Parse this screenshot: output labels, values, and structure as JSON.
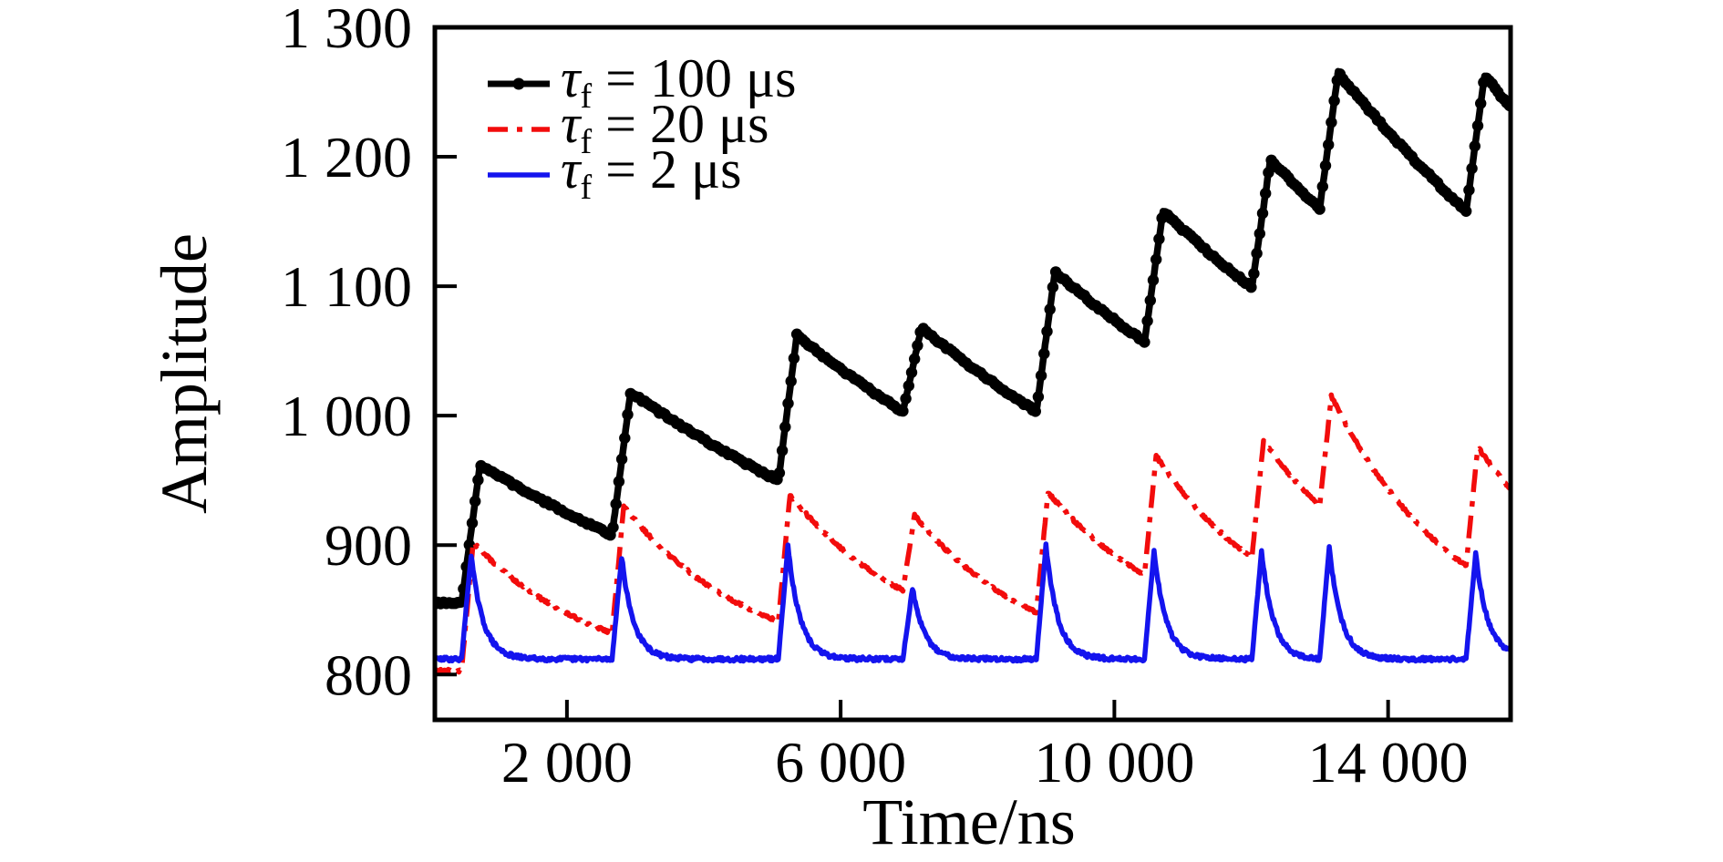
{
  "chart_data": {
    "type": "line",
    "title": "",
    "xlabel": "Time/ns",
    "ylabel": "Amplitude",
    "xlim": [
      70,
      15790
    ],
    "ylim": [
      765,
      1300
    ],
    "grid": false,
    "legend_position": "top-left-inside",
    "x_ticks": [
      {
        "value": 2000,
        "label": "2 000"
      },
      {
        "value": 6000,
        "label": "6 000"
      },
      {
        "value": 10000,
        "label": "10 000"
      },
      {
        "value": 14000,
        "label": "14 000"
      }
    ],
    "y_ticks": [
      {
        "value": 800,
        "label": "800"
      },
      {
        "value": 900,
        "label": "900"
      },
      {
        "value": 1000,
        "label": "1 000"
      },
      {
        "value": 1100,
        "label": "1 100"
      },
      {
        "value": 1200,
        "label": "1 200"
      },
      {
        "value": 1300,
        "label": "1 300"
      }
    ],
    "pulse_times_ns": [
      460,
      2660,
      5090,
      6910,
      8860,
      10440,
      12010,
      13000,
      15140
    ],
    "series": [
      {
        "name": "tau_f = 100 us",
        "legend": {
          "tau": "τ",
          "sub": "f",
          "suffix": " = 100 μs"
        },
        "color": "#000000",
        "line_style": "solid",
        "marker": "circle",
        "stroke_width": 7.5,
        "baseline": 855,
        "rise_ns": 270,
        "decay_tau_ns": 6500,
        "noise": 1.0,
        "seed": 7,
        "pulses": [
          [
            460,
            962,
            908
          ],
          [
            2660,
            1018,
            950
          ],
          [
            5090,
            1062,
            1003
          ],
          [
            6910,
            1068,
            1003
          ],
          [
            8860,
            1111,
            1057
          ],
          [
            10440,
            1158,
            1099
          ],
          [
            12010,
            1198,
            1160
          ],
          [
            13000,
            1265,
            1158
          ],
          [
            15140,
            1263,
            1238
          ]
        ]
      },
      {
        "name": "tau_f = 20 us",
        "legend": {
          "tau": "τ",
          "sub": "f",
          "suffix": " = 20 μs"
        },
        "color": "#f20c0c",
        "line_style": "dash-dot",
        "marker": "none",
        "stroke_width": 5.5,
        "baseline": 803,
        "rise_ns": 170,
        "decay_tau_ns": 1900,
        "noise": 1.1,
        "seed": 13,
        "pulses": [
          [
            460,
            902,
            832
          ],
          [
            2660,
            930,
            841
          ],
          [
            5090,
            939,
            865
          ],
          [
            6910,
            923,
            848
          ],
          [
            8860,
            941,
            877
          ],
          [
            10440,
            969,
            890
          ],
          [
            12010,
            981,
            930
          ],
          [
            13000,
            1015,
            884
          ],
          [
            15140,
            976,
            943
          ]
        ]
      },
      {
        "name": "tau_f = 2 us",
        "legend": {
          "tau": "τ",
          "sub": "f",
          "suffix": " = 2 μs"
        },
        "color": "#1414ee",
        "line_style": "solid",
        "marker": "none",
        "stroke_width": 5.5,
        "baseline": 812,
        "rise_ns": 140,
        "decay_tau_ns": 175,
        "noise": 1.6,
        "seed": 29,
        "pulses": [
          [
            460,
            893,
            812
          ],
          [
            2660,
            891,
            812
          ],
          [
            5090,
            900,
            812
          ],
          [
            6910,
            867,
            812
          ],
          [
            8860,
            900,
            812
          ],
          [
            10440,
            896,
            812
          ],
          [
            12010,
            896,
            812
          ],
          [
            13000,
            898,
            812
          ],
          [
            15140,
            894,
            818
          ]
        ]
      }
    ]
  }
}
